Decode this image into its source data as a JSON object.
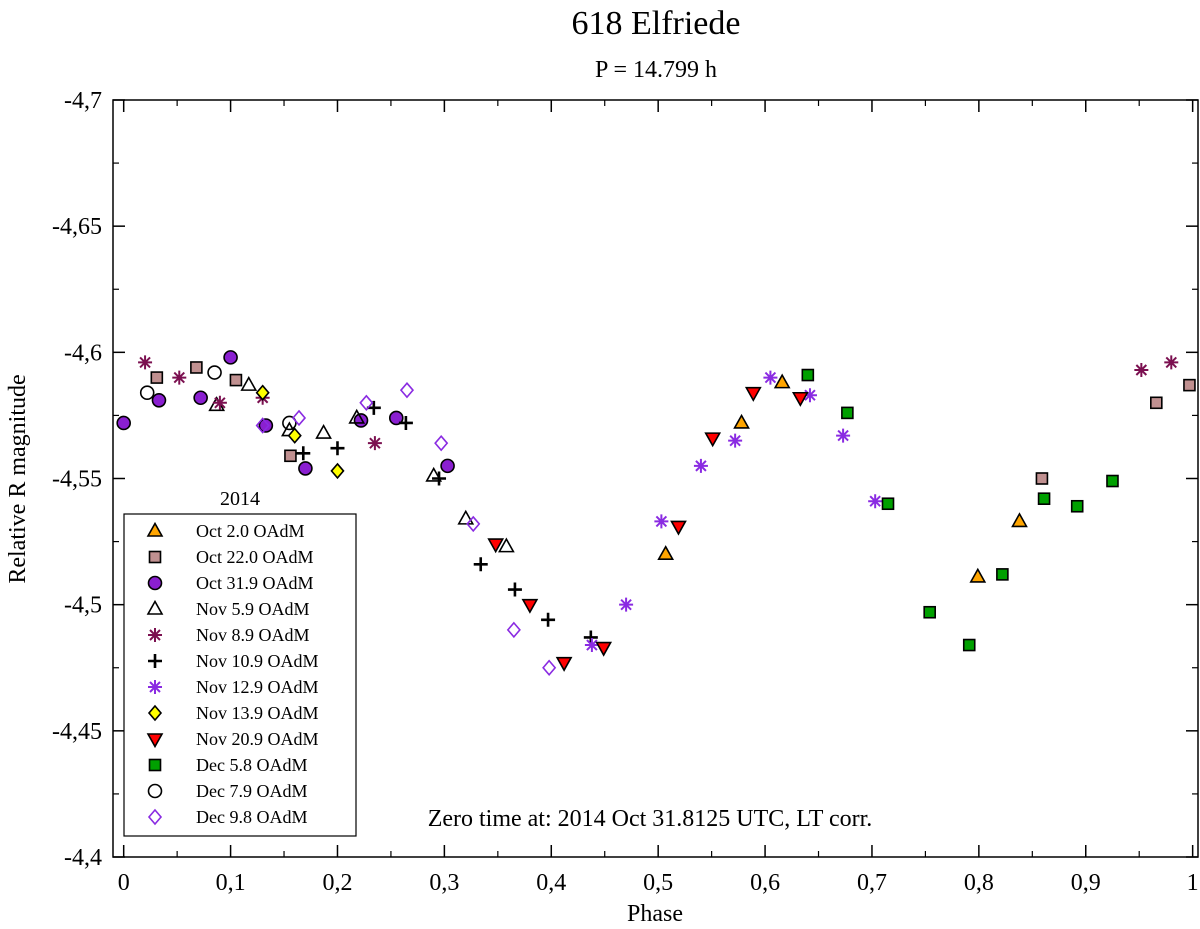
{
  "chart_data": {
    "type": "scatter",
    "title": "618 Elfriede",
    "subtitle": "P = 14.799 h",
    "xlabel": "Phase",
    "ylabel": "Relative R magnitude",
    "xlim": [
      -0.01,
      1.005
    ],
    "ylim": [
      -4.7,
      -4.4
    ],
    "x_ticks": [
      0,
      0.1,
      0.2,
      0.3,
      0.4,
      0.5,
      0.6,
      0.7,
      0.8,
      0.9,
      1
    ],
    "x_tick_labels": [
      "0",
      "0,1",
      "0,2",
      "0,3",
      "0,4",
      "0,5",
      "0,6",
      "0,7",
      "0,8",
      "0,9",
      "1"
    ],
    "y_ticks": [
      -4.7,
      -4.65,
      -4.6,
      -4.55,
      -4.5,
      -4.45,
      -4.4
    ],
    "y_tick_labels": [
      "-4,7",
      "-4,65",
      "-4,6",
      "-4,55",
      "-4,5",
      "-4,45",
      "-4,4"
    ],
    "legend_title": "2014",
    "legend_position": "bottom-left",
    "annotation": "Zero time at: 2014 Oct 31.8125 UTC, LT corr.",
    "series": [
      {
        "name": "Oct 2.0 OAdM",
        "marker": "triangle-up",
        "fill": "#ffa500",
        "stroke": "#000000",
        "x": [
          0.507,
          0.578,
          0.616,
          0.799,
          0.838
        ],
        "y": [
          -4.52,
          -4.572,
          -4.588,
          -4.511,
          -4.533
        ]
      },
      {
        "name": "Oct 22.0 OAdM",
        "marker": "square",
        "fill": "#c09090",
        "stroke": "#000000",
        "x": [
          0.031,
          0.068,
          0.105,
          0.156,
          0.859,
          0.966,
          0.997
        ],
        "y": [
          -4.59,
          -4.594,
          -4.589,
          -4.559,
          -4.55,
          -4.58,
          -4.587
        ]
      },
      {
        "name": "Oct 31.9 OAdM",
        "marker": "circle",
        "fill": "#8a1fd0",
        "stroke": "#000000",
        "x": [
          0.0,
          0.033,
          0.072,
          0.1,
          0.133,
          0.17,
          0.222,
          0.255,
          0.303
        ],
        "y": [
          -4.572,
          -4.581,
          -4.582,
          -4.598,
          -4.571,
          -4.554,
          -4.573,
          -4.574,
          -4.555
        ]
      },
      {
        "name": "Nov 5.9 OAdM",
        "marker": "triangle-up-open",
        "fill": "none",
        "stroke": "#000000",
        "x": [
          0.087,
          0.117,
          0.155,
          0.187,
          0.218,
          0.29,
          0.32,
          0.358
        ],
        "y": [
          -4.579,
          -4.587,
          -4.569,
          -4.568,
          -4.574,
          -4.551,
          -4.534,
          -4.523
        ]
      },
      {
        "name": "Nov 8.9 OAdM",
        "marker": "asterisk",
        "fill": "#7b1050",
        "stroke": "#7b1050",
        "x": [
          0.02,
          0.052,
          0.09,
          0.13,
          0.235,
          0.952,
          0.98
        ],
        "y": [
          -4.596,
          -4.59,
          -4.58,
          -4.582,
          -4.564,
          -4.593,
          -4.596
        ]
      },
      {
        "name": "Nov 10.9 OAdM",
        "marker": "plus",
        "fill": "#000000",
        "stroke": "#000000",
        "x": [
          0.168,
          0.2,
          0.234,
          0.264,
          0.295,
          0.334,
          0.366,
          0.397,
          0.437
        ],
        "y": [
          -4.56,
          -4.562,
          -4.578,
          -4.572,
          -4.55,
          -4.516,
          -4.506,
          -4.494,
          -4.487
        ]
      },
      {
        "name": "Nov 12.9 OAdM",
        "marker": "asterisk",
        "fill": "#8a2be2",
        "stroke": "#8a2be2",
        "x": [
          0.438,
          0.47,
          0.503,
          0.54,
          0.572,
          0.605,
          0.642,
          0.673,
          0.703
        ],
        "y": [
          -4.484,
          -4.5,
          -4.533,
          -4.555,
          -4.565,
          -4.59,
          -4.583,
          -4.567,
          -4.541
        ]
      },
      {
        "name": "Nov 13.9 OAdM",
        "marker": "diamond",
        "fill": "#ffff00",
        "stroke": "#000000",
        "x": [
          0.13,
          0.16,
          0.2
        ],
        "y": [
          -4.584,
          -4.567,
          -4.553
        ]
      },
      {
        "name": "Nov 20.9 OAdM",
        "marker": "triangle-down",
        "fill": "#ff0000",
        "stroke": "#000000",
        "x": [
          0.348,
          0.38,
          0.412,
          0.449,
          0.519,
          0.551,
          0.589,
          0.633
        ],
        "y": [
          -4.524,
          -4.5,
          -4.477,
          -4.483,
          -4.531,
          -4.566,
          -4.584,
          -4.582
        ]
      },
      {
        "name": "Dec 5.8 OAdM",
        "marker": "square",
        "fill": "#00a000",
        "stroke": "#000000",
        "x": [
          0.64,
          0.677,
          0.715,
          0.754,
          0.791,
          0.822,
          0.861,
          0.892,
          0.925
        ],
        "y": [
          -4.591,
          -4.576,
          -4.54,
          -4.497,
          -4.484,
          -4.512,
          -4.542,
          -4.539,
          -4.549
        ]
      },
      {
        "name": "Dec 7.9 OAdM",
        "marker": "circle-open",
        "fill": "none",
        "stroke": "#000000",
        "x": [
          0.022,
          0.085,
          0.155
        ],
        "y": [
          -4.584,
          -4.592,
          -4.572
        ]
      },
      {
        "name": "Dec 9.8 OAdM",
        "marker": "diamond-open",
        "fill": "none",
        "stroke": "#8a2be2",
        "x": [
          0.13,
          0.164,
          0.227,
          0.265,
          0.297,
          0.327,
          0.365,
          0.398
        ],
        "y": [
          -4.571,
          -4.574,
          -4.58,
          -4.585,
          -4.564,
          -4.532,
          -4.49,
          -4.475
        ]
      }
    ]
  }
}
